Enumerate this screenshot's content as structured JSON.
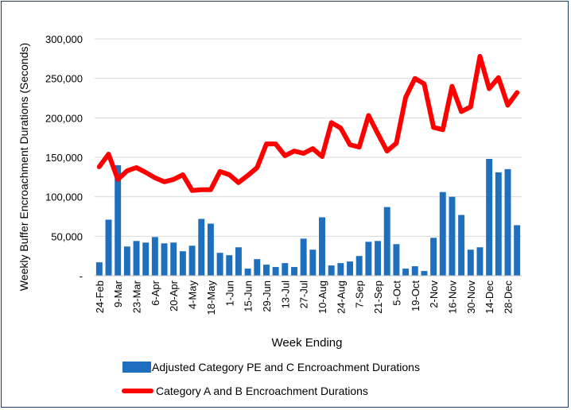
{
  "chart_data": {
    "type": "bar+line",
    "title": "",
    "xlabel": "Week Ending",
    "ylabel": "Weekly Buffer Encroachment Durations (Seconds)",
    "ylim": [
      0,
      300000
    ],
    "y_ticks": [
      0,
      50000,
      100000,
      150000,
      200000,
      250000,
      300000
    ],
    "y_tick_labels": [
      "-",
      "50,000",
      "100,000",
      "150,000",
      "200,000",
      "250,000",
      "300,000"
    ],
    "tick_labels": [
      "24-Feb",
      "9-Mar",
      "23-Mar",
      "6-Apr",
      "20-Apr",
      "4-May",
      "18-May",
      "1-Jun",
      "15-Jun",
      "29-Jun",
      "13-Jul",
      "27-Jul",
      "10-Aug",
      "24-Aug",
      "7-Sep",
      "21-Sep",
      "5-Oct",
      "19-Oct",
      "2-Nov",
      "16-Nov",
      "30-Nov",
      "14-Dec",
      "28-Dec"
    ],
    "tick_every": 2,
    "grid": true,
    "legend_position": "bottom",
    "series": [
      {
        "name": "Adjusted Category PE and C Encroachment Durations",
        "kind": "bar",
        "color": "#1f6fbf",
        "values": [
          17000,
          71000,
          140000,
          37000,
          44000,
          42000,
          49000,
          41000,
          42000,
          31000,
          38000,
          72000,
          66000,
          29000,
          26000,
          36000,
          9000,
          21000,
          14000,
          11000,
          16000,
          11000,
          47000,
          33000,
          74000,
          13000,
          16000,
          18000,
          25000,
          43000,
          44000,
          87000,
          40000,
          9000,
          12000,
          6000,
          48000,
          106000,
          100000,
          77000,
          33000,
          36000,
          148000,
          131000,
          135000,
          64000
        ]
      },
      {
        "name": "Category A and B Encroachment Durations",
        "kind": "line",
        "color": "#ff0000",
        "values": [
          138000,
          154000,
          122000,
          133000,
          137000,
          131000,
          124000,
          119000,
          122000,
          128000,
          108000,
          109000,
          109000,
          132000,
          128000,
          118000,
          127000,
          137000,
          167000,
          167000,
          152000,
          158000,
          155000,
          161000,
          151000,
          194000,
          187000,
          166000,
          163000,
          203000,
          180000,
          158000,
          168000,
          226000,
          250000,
          243000,
          188000,
          185000,
          240000,
          208000,
          214000,
          278000,
          237000,
          251000,
          216000,
          232000
        ]
      }
    ]
  }
}
